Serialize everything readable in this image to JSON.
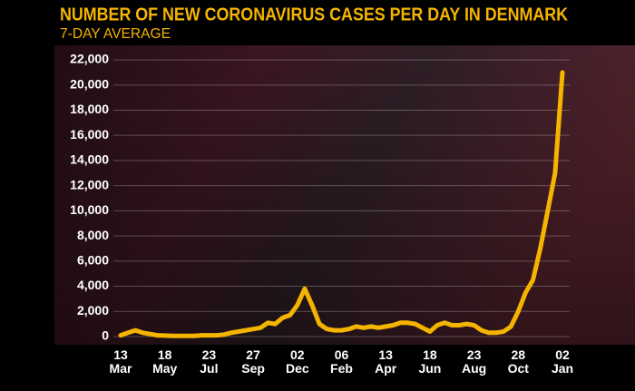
{
  "chart_data": {
    "type": "line",
    "title": "NUMBER OF NEW CORONAVIRUS CASES PER DAY IN DENMARK",
    "subtitle": "7-DAY AVERAGE",
    "categories": [
      "13 Mar",
      null,
      null,
      null,
      null,
      null,
      "18 May",
      null,
      null,
      null,
      null,
      null,
      "23 Jul",
      null,
      null,
      null,
      null,
      null,
      "27 Sep",
      null,
      null,
      null,
      null,
      null,
      "02 Dec",
      null,
      null,
      null,
      null,
      null,
      "06 Feb",
      null,
      null,
      null,
      null,
      null,
      "13 Apr",
      null,
      null,
      null,
      null,
      null,
      "18 Jun",
      null,
      null,
      null,
      null,
      null,
      "23 Aug",
      null,
      null,
      null,
      null,
      null,
      "28 Oct",
      null,
      null,
      null,
      null,
      null,
      "02 Jan"
    ],
    "values": [
      100,
      300,
      500,
      300,
      200,
      100,
      80,
      50,
      50,
      50,
      60,
      100,
      100,
      100,
      150,
      300,
      400,
      500,
      600,
      700,
      1100,
      1000,
      1500,
      1700,
      2500,
      3800,
      2500,
      1000,
      600,
      500,
      500,
      600,
      800,
      700,
      800,
      700,
      800,
      900,
      1100,
      1100,
      1000,
      700,
      400,
      900,
      1100,
      900,
      900,
      1000,
      900,
      500,
      300,
      300,
      400,
      800,
      2000,
      3500,
      4500,
      7000,
      10000,
      13000,
      21000
    ],
    "color": "#f5b400",
    "ylim": [
      0,
      22000
    ],
    "yticks": [
      0,
      {
        "value": 2000,
        "label": "2,000"
      },
      {
        "value": 4000,
        "label": "4,000"
      },
      {
        "value": 6000,
        "label": "6,000"
      },
      {
        "value": 8000,
        "label": "8,000"
      },
      {
        "value": 10000,
        "label": "10,000"
      },
      {
        "value": 12000,
        "label": "12,000"
      },
      {
        "value": 14000,
        "label": "14,000"
      },
      {
        "value": 16000,
        "label": "16,000"
      },
      {
        "value": 18000,
        "label": "18,000"
      },
      {
        "value": 20000,
        "label": "20,000"
      },
      {
        "value": 22000,
        "label": "22,000"
      }
    ],
    "grid": true
  }
}
